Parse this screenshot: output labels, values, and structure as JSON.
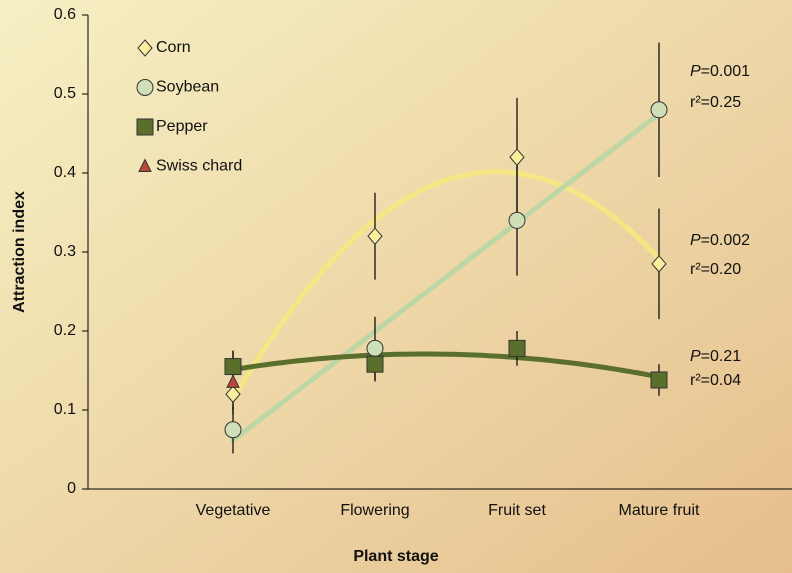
{
  "chart_data": {
    "type": "line",
    "xlabel": "Plant stage",
    "ylabel": "Attraction index",
    "categories": [
      "Vegetative",
      "Flowering",
      "Fruit set",
      "Mature fruit"
    ],
    "ylim": [
      0,
      0.6
    ],
    "yticks": [
      0,
      0.1,
      0.2,
      0.3,
      0.4,
      0.5,
      0.6
    ],
    "series": [
      {
        "name": "Corn",
        "marker": "diamond",
        "color": "#fbee9c",
        "line_color": "#f5e783",
        "trend": "quadratic",
        "values": [
          0.12,
          0.32,
          0.42,
          0.285
        ],
        "errors": [
          0.02,
          0.055,
          0.075,
          0.07
        ]
      },
      {
        "name": "Soybean",
        "marker": "circle",
        "color": "#cfe0b8",
        "line_color": "#bdd6a6",
        "trend": "linear",
        "values": [
          0.075,
          0.178,
          0.34,
          0.48
        ],
        "errors": [
          0.03,
          0.04,
          0.07,
          0.085
        ]
      },
      {
        "name": "Pepper",
        "marker": "square",
        "color": "#5b6f2d",
        "line_color": "#5b6f2d",
        "trend": "quadratic",
        "values": [
          0.155,
          0.158,
          0.178,
          0.138
        ],
        "errors": [
          0.02,
          0.022,
          0.022,
          0.02
        ]
      },
      {
        "name": "Swiss chard",
        "marker": "triangle",
        "color": "#b9473a",
        "line_color": "#b9473a",
        "values": [
          0.135,
          null,
          null,
          null
        ],
        "errors": [
          0.04,
          null,
          null,
          null
        ]
      }
    ],
    "annotations": [
      {
        "symbol": "P",
        "text": "=0.001",
        "r2": "r²=0.25"
      },
      {
        "symbol": "P",
        "text": "=0.002",
        "r2": "r²=0.20"
      },
      {
        "symbol": "P",
        "text": "=0.21",
        "r2": "r²=0.04"
      }
    ]
  }
}
